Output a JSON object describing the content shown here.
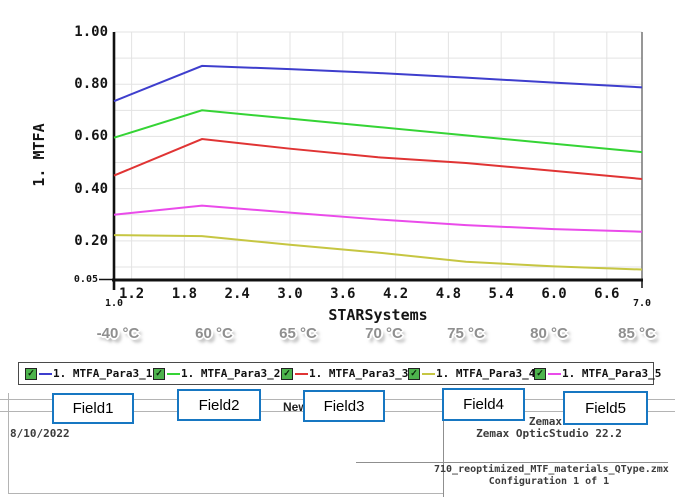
{
  "chart_data": {
    "type": "line",
    "title": "",
    "xlabel": "STARSystems",
    "ylabel": "1. MTFA",
    "xlim": [
      1.0,
      7.0
    ],
    "ylim": [
      0.05,
      1.0
    ],
    "grid": true,
    "legend_position": "bottom",
    "x": [
      1,
      2,
      3,
      4,
      5,
      6,
      7
    ],
    "x_tick_labels": [
      "1.2",
      "1.8",
      "2.4",
      "3.0",
      "3.6",
      "4.2",
      "4.8",
      "5.4",
      "6.0",
      "6.6"
    ],
    "x_end_labels": [
      "1.0",
      "7.0"
    ],
    "y_tick_labels": [
      "1.00",
      "0.80",
      "0.60",
      "0.40",
      "0.20"
    ],
    "y_min_label": "0.05",
    "series": [
      {
        "name": "1. MTFA_Para3_1",
        "color": "#3e3ecd",
        "checked": true,
        "values": [
          0.735,
          0.87,
          0.858,
          0.843,
          0.825,
          0.806,
          0.788
        ]
      },
      {
        "name": "1. MTFA_Para3_2",
        "color": "#35d435",
        "checked": true,
        "values": [
          0.595,
          0.7,
          0.668,
          0.636,
          0.604,
          0.572,
          0.54
        ]
      },
      {
        "name": "1. MTFA_Para3_3",
        "color": "#e03434",
        "checked": true,
        "values": [
          0.45,
          0.59,
          0.553,
          0.52,
          0.498,
          0.468,
          0.437
        ]
      },
      {
        "name": "1. MTFA_Para3_4",
        "color": "#c6c642",
        "checked": true,
        "values": [
          0.222,
          0.218,
          0.185,
          0.155,
          0.12,
          0.102,
          0.09
        ]
      },
      {
        "name": "1. MTFA_Para3_5",
        "color": "#ea4bea",
        "checked": true,
        "values": [
          0.3,
          0.335,
          0.308,
          0.282,
          0.26,
          0.245,
          0.235
        ]
      }
    ],
    "temperature_labels": [
      "-40 °C",
      "60 °C",
      "65 °C",
      "70 °C",
      "75 °C",
      "80 °C",
      "85 °C"
    ],
    "checkmark_glyph": "✓"
  },
  "footer": {
    "date": "8/10/2022",
    "new_label": "New",
    "fields": [
      "Field1",
      "Field2",
      "Field3",
      "Field4",
      "Field5"
    ],
    "callout_border_color": "#1777c2",
    "brand_partial": "Zemax",
    "app_version": "Zemax OpticStudio 22.2",
    "file_name": "710_reoptimized_MTF_materials_QType.zmx",
    "configuration": "Configuration 1 of 1"
  }
}
